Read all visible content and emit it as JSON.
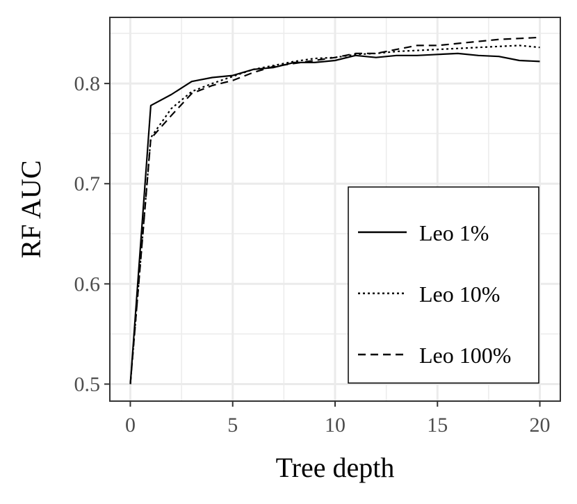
{
  "chart_data": {
    "type": "line",
    "title": "",
    "xlabel": "Tree depth",
    "ylabel": "RF AUC",
    "xlim": [
      -1,
      21
    ],
    "ylim": [
      0.483,
      0.866
    ],
    "xticks": [
      0,
      5,
      10,
      15,
      20
    ],
    "xtick_labels": [
      "0",
      "5",
      "10",
      "15",
      "20"
    ],
    "yticks": [
      0.5,
      0.6,
      0.7,
      0.8
    ],
    "ytick_labels": [
      "0.5",
      "0.6",
      "0.7",
      "0.8"
    ],
    "grid": true,
    "legend_position": "bottom-right",
    "x": [
      0,
      1,
      2,
      3,
      4,
      5,
      6,
      7,
      8,
      9,
      10,
      11,
      12,
      13,
      14,
      15,
      16,
      17,
      18,
      19,
      20
    ],
    "series": [
      {
        "name": "Leo 1%",
        "linestyle": "solid",
        "values": [
          0.5,
          0.778,
          0.789,
          0.802,
          0.806,
          0.808,
          0.814,
          0.816,
          0.821,
          0.821,
          0.823,
          0.828,
          0.826,
          0.828,
          0.828,
          0.829,
          0.83,
          0.828,
          0.827,
          0.823,
          0.822
        ]
      },
      {
        "name": "Leo 10%",
        "linestyle": "dotted",
        "values": [
          0.5,
          0.746,
          0.775,
          0.792,
          0.8,
          0.807,
          0.814,
          0.818,
          0.822,
          0.825,
          0.826,
          0.829,
          0.83,
          0.832,
          0.833,
          0.834,
          0.835,
          0.836,
          0.837,
          0.838,
          0.836
        ]
      },
      {
        "name": "Leo 100%",
        "linestyle": "dashed",
        "values": [
          0.5,
          0.745,
          0.768,
          0.79,
          0.798,
          0.803,
          0.811,
          0.817,
          0.82,
          0.823,
          0.826,
          0.83,
          0.83,
          0.834,
          0.838,
          0.838,
          0.84,
          0.842,
          0.844,
          0.845,
          0.846
        ]
      }
    ]
  }
}
